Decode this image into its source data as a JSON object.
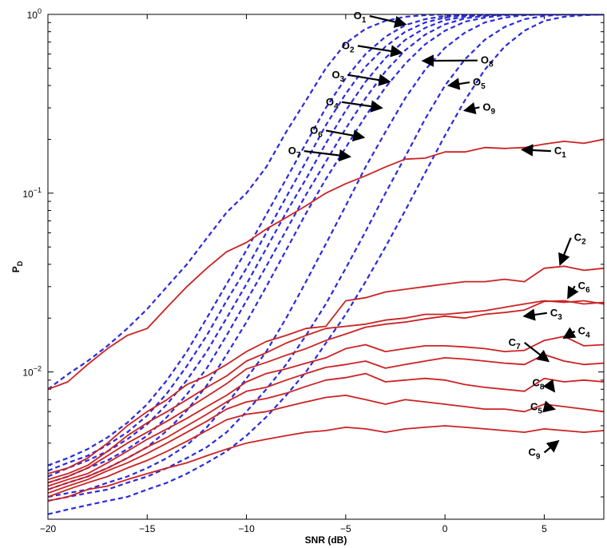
{
  "chart_data": {
    "type": "line",
    "xlabel": "SNR (dB)",
    "ylabel_main": "P",
    "ylabel_sub": "D",
    "y_scale": "log",
    "xlim": [
      -20,
      8
    ],
    "ylim": [
      0.0015,
      1
    ],
    "x_ticks": [
      {
        "value": -20,
        "label": "−20"
      },
      {
        "value": -15,
        "label": "−15"
      },
      {
        "value": -10,
        "label": "−10"
      },
      {
        "value": -5,
        "label": "−5"
      },
      {
        "value": 0,
        "label": "0"
      },
      {
        "value": 5,
        "label": "5"
      }
    ],
    "y_ticks": [
      {
        "value": 0.01,
        "base": "10",
        "exp": "−2"
      },
      {
        "value": 0.1,
        "base": "10",
        "exp": "−1"
      },
      {
        "value": 1,
        "base": "10",
        "exp": "0"
      }
    ],
    "x": [
      -20,
      -19,
      -18,
      -17,
      -16,
      -15,
      -14,
      -13,
      -12,
      -11,
      -10,
      -9,
      -8,
      -7,
      -6,
      -5,
      -4,
      -3,
      -2,
      -1,
      0,
      1,
      2,
      3,
      4,
      5,
      6,
      7,
      8
    ],
    "series_styles": {
      "O": {
        "color": "#2a2ae0",
        "dash": true
      },
      "C": {
        "color": "#cc2222",
        "dash": false
      }
    },
    "series": [
      {
        "id": "O1",
        "group": "O",
        "values": [
          0.008,
          0.0097,
          0.0115,
          0.014,
          0.0175,
          0.0225,
          0.03,
          0.04,
          0.056,
          0.078,
          0.1,
          0.14,
          0.22,
          0.33,
          0.5,
          0.69,
          0.83,
          0.92,
          0.97,
          0.99,
          1.0,
          1.0,
          1.0,
          1.0,
          1.0,
          1.0,
          1.0,
          1.0,
          1.0
        ]
      },
      {
        "id": "O2",
        "group": "O",
        "values": [
          0.003,
          0.0033,
          0.0037,
          0.0043,
          0.0052,
          0.0066,
          0.009,
          0.013,
          0.02,
          0.031,
          0.048,
          0.076,
          0.12,
          0.19,
          0.3,
          0.44,
          0.6,
          0.75,
          0.87,
          0.94,
          0.98,
          0.99,
          1.0,
          1.0,
          1.0,
          1.0,
          1.0,
          1.0,
          1.0
        ]
      },
      {
        "id": "O3",
        "group": "O",
        "values": [
          0.0028,
          0.0031,
          0.0034,
          0.0039,
          0.0046,
          0.0057,
          0.0076,
          0.0108,
          0.016,
          0.025,
          0.038,
          0.06,
          0.095,
          0.15,
          0.24,
          0.36,
          0.51,
          0.66,
          0.8,
          0.9,
          0.96,
          0.99,
          1.0,
          1.0,
          1.0,
          1.0,
          1.0,
          1.0,
          1.0
        ]
      },
      {
        "id": "O4",
        "group": "O",
        "values": [
          0.0026,
          0.0029,
          0.0032,
          0.0036,
          0.0042,
          0.0051,
          0.0066,
          0.009,
          0.013,
          0.02,
          0.031,
          0.049,
          0.078,
          0.12,
          0.19,
          0.29,
          0.42,
          0.57,
          0.72,
          0.84,
          0.93,
          0.97,
          0.99,
          1.0,
          1.0,
          1.0,
          1.0,
          1.0,
          1.0
        ]
      },
      {
        "id": "O6",
        "group": "O",
        "values": [
          0.0024,
          0.0026,
          0.0029,
          0.0032,
          0.0037,
          0.0044,
          0.0056,
          0.0075,
          0.0105,
          0.016,
          0.025,
          0.039,
          0.062,
          0.098,
          0.15,
          0.23,
          0.34,
          0.48,
          0.63,
          0.77,
          0.88,
          0.95,
          0.98,
          1.0,
          1.0,
          1.0,
          1.0,
          1.0,
          1.0
        ]
      },
      {
        "id": "O7",
        "group": "O",
        "values": [
          0.0022,
          0.0024,
          0.0026,
          0.0029,
          0.0033,
          0.0038,
          0.0047,
          0.0061,
          0.0084,
          0.0125,
          0.019,
          0.03,
          0.048,
          0.077,
          0.12,
          0.18,
          0.27,
          0.39,
          0.53,
          0.68,
          0.81,
          0.91,
          0.96,
          0.99,
          1.0,
          1.0,
          1.0,
          1.0,
          1.0
        ]
      },
      {
        "id": "O8",
        "group": "O",
        "values": [
          0.002,
          0.0021,
          0.0022,
          0.0024,
          0.0026,
          0.0029,
          0.0033,
          0.0039,
          0.0049,
          0.0066,
          0.0092,
          0.013,
          0.02,
          0.032,
          0.052,
          0.085,
          0.14,
          0.22,
          0.34,
          0.49,
          0.65,
          0.79,
          0.9,
          0.96,
          0.99,
          1.0,
          1.0,
          1.0,
          1.0
        ]
      },
      {
        "id": "O5",
        "group": "O",
        "values": [
          0.0019,
          0.002,
          0.0021,
          0.0022,
          0.0024,
          0.0026,
          0.0029,
          0.0033,
          0.0038,
          0.0046,
          0.006,
          0.008,
          0.011,
          0.016,
          0.024,
          0.038,
          0.061,
          0.1,
          0.16,
          0.26,
          0.4,
          0.56,
          0.72,
          0.85,
          0.94,
          0.98,
          1.0,
          1.0,
          1.0
        ]
      },
      {
        "id": "O9",
        "group": "O",
        "values": [
          0.0016,
          0.0017,
          0.0018,
          0.0019,
          0.002,
          0.0022,
          0.0024,
          0.0027,
          0.0031,
          0.0036,
          0.0044,
          0.0056,
          0.0074,
          0.01,
          0.0145,
          0.021,
          0.032,
          0.05,
          0.08,
          0.13,
          0.21,
          0.33,
          0.49,
          0.66,
          0.81,
          0.92,
          0.97,
          0.99,
          1.0
        ]
      },
      {
        "id": "C1",
        "group": "C",
        "values": [
          0.008,
          0.0088,
          0.011,
          0.0135,
          0.016,
          0.0175,
          0.023,
          0.03,
          0.038,
          0.047,
          0.053,
          0.063,
          0.073,
          0.085,
          0.1,
          0.113,
          0.125,
          0.14,
          0.155,
          0.157,
          0.17,
          0.17,
          0.18,
          0.178,
          0.18,
          0.188,
          0.195,
          0.19,
          0.2
        ]
      },
      {
        "id": "C2",
        "group": "C",
        "values": [
          0.0027,
          0.0029,
          0.0033,
          0.004,
          0.005,
          0.006,
          0.007,
          0.0085,
          0.0095,
          0.011,
          0.013,
          0.0148,
          0.016,
          0.0175,
          0.018,
          0.025,
          0.026,
          0.028,
          0.029,
          0.03,
          0.031,
          0.032,
          0.032,
          0.033,
          0.032,
          0.038,
          0.039,
          0.037,
          0.038
        ]
      },
      {
        "id": "C6",
        "group": "C",
        "values": [
          0.0025,
          0.0027,
          0.003,
          0.0036,
          0.0044,
          0.0052,
          0.006,
          0.007,
          0.0082,
          0.0095,
          0.0115,
          0.0128,
          0.0145,
          0.016,
          0.0175,
          0.018,
          0.0185,
          0.0195,
          0.02,
          0.021,
          0.021,
          0.0215,
          0.022,
          0.023,
          0.024,
          0.025,
          0.0245,
          0.025,
          0.024
        ]
      },
      {
        "id": "C3",
        "group": "C",
        "values": [
          0.0024,
          0.0026,
          0.0029,
          0.0034,
          0.004,
          0.0046,
          0.0053,
          0.0062,
          0.0073,
          0.0086,
          0.0104,
          0.0113,
          0.0124,
          0.0135,
          0.015,
          0.0163,
          0.0178,
          0.0185,
          0.019,
          0.0198,
          0.0205,
          0.02,
          0.021,
          0.0215,
          0.0222,
          0.0248,
          0.025,
          0.024,
          0.0245
        ]
      },
      {
        "id": "C4",
        "group": "C",
        "values": [
          0.0023,
          0.0025,
          0.0027,
          0.0031,
          0.0036,
          0.0042,
          0.0048,
          0.0055,
          0.0064,
          0.0074,
          0.0088,
          0.0098,
          0.0104,
          0.0112,
          0.012,
          0.0135,
          0.0142,
          0.013,
          0.0135,
          0.014,
          0.014,
          0.0138,
          0.0135,
          0.013,
          0.0132,
          0.015,
          0.0158,
          0.014,
          0.0142
        ]
      },
      {
        "id": "C7",
        "group": "C",
        "values": [
          0.0022,
          0.0024,
          0.0026,
          0.0029,
          0.0033,
          0.0038,
          0.0043,
          0.005,
          0.0058,
          0.0068,
          0.0078,
          0.0082,
          0.009,
          0.0098,
          0.0106,
          0.011,
          0.0115,
          0.0105,
          0.011,
          0.0115,
          0.012,
          0.0118,
          0.0115,
          0.0112,
          0.011,
          0.0125,
          0.0115,
          0.011,
          0.0112
        ]
      },
      {
        "id": "C8",
        "group": "C",
        "values": [
          0.0021,
          0.0023,
          0.0025,
          0.0028,
          0.0031,
          0.0035,
          0.004,
          0.0046,
          0.0053,
          0.0062,
          0.0068,
          0.0071,
          0.0076,
          0.0083,
          0.009,
          0.0093,
          0.0098,
          0.0088,
          0.009,
          0.0092,
          0.009,
          0.0085,
          0.0082,
          0.008,
          0.0078,
          0.0092,
          0.0088,
          0.009,
          0.0088
        ]
      },
      {
        "id": "C5",
        "group": "C",
        "values": [
          0.002,
          0.0022,
          0.0024,
          0.0026,
          0.0029,
          0.0032,
          0.0036,
          0.0041,
          0.0047,
          0.0054,
          0.0058,
          0.006,
          0.0064,
          0.0068,
          0.0072,
          0.0074,
          0.007,
          0.0066,
          0.007,
          0.0068,
          0.0066,
          0.0064,
          0.0062,
          0.0062,
          0.006,
          0.0066,
          0.0064,
          0.0062,
          0.006
        ]
      },
      {
        "id": "C9",
        "group": "C",
        "values": [
          0.0019,
          0.002,
          0.0022,
          0.0023,
          0.0025,
          0.0027,
          0.0029,
          0.0031,
          0.0034,
          0.0037,
          0.004,
          0.0042,
          0.0044,
          0.0046,
          0.0047,
          0.0049,
          0.0048,
          0.0046,
          0.0048,
          0.0049,
          0.005,
          0.0049,
          0.0048,
          0.0047,
          0.0046,
          0.0048,
          0.0047,
          0.0046,
          0.0047
        ]
      }
    ],
    "annotations": [
      {
        "main": "O",
        "sub": "1",
        "label_x": -4.6,
        "label_y": 0.94,
        "arrow_to_x": -2.0,
        "arrow_to_y": 0.88
      },
      {
        "main": "O",
        "sub": "2",
        "label_x": -5.2,
        "label_y": 0.64,
        "arrow_to_x": -2.2,
        "arrow_to_y": 0.61
      },
      {
        "main": "O",
        "sub": "3",
        "label_x": -5.7,
        "label_y": 0.44,
        "arrow_to_x": -2.8,
        "arrow_to_y": 0.42
      },
      {
        "main": "O",
        "sub": "4",
        "label_x": -6.0,
        "label_y": 0.31,
        "arrow_to_x": -3.2,
        "arrow_to_y": 0.3
      },
      {
        "main": "O",
        "sub": "6",
        "label_x": -6.8,
        "label_y": 0.215,
        "arrow_to_x": -4.1,
        "arrow_to_y": 0.205
      },
      {
        "main": "O",
        "sub": "7",
        "label_x": -7.9,
        "label_y": 0.165,
        "arrow_to_x": -4.8,
        "arrow_to_y": 0.16
      },
      {
        "main": "O",
        "sub": "8",
        "label_x": 1.8,
        "label_y": 0.53,
        "arrow_to_x": -1.1,
        "arrow_to_y": 0.55
      },
      {
        "main": "O",
        "sub": "5",
        "label_x": 1.4,
        "label_y": 0.4,
        "arrow_to_x": 0.2,
        "arrow_to_y": 0.4
      },
      {
        "main": "O",
        "sub": "9",
        "label_x": 1.9,
        "label_y": 0.29,
        "arrow_to_x": 1.0,
        "arrow_to_y": 0.29
      },
      {
        "main": "C",
        "sub": "1",
        "label_x": 5.5,
        "label_y": 0.165,
        "arrow_to_x": 3.9,
        "arrow_to_y": 0.175
      },
      {
        "main": "C",
        "sub": "2",
        "label_x": 6.5,
        "label_y": 0.054,
        "arrow_to_x": 5.8,
        "arrow_to_y": 0.04
      },
      {
        "main": "C",
        "sub": "6",
        "label_x": 6.7,
        "label_y": 0.029,
        "arrow_to_x": 6.2,
        "arrow_to_y": 0.026
      },
      {
        "main": "C",
        "sub": "3",
        "label_x": 5.3,
        "label_y": 0.0205,
        "arrow_to_x": 4.0,
        "arrow_to_y": 0.0205
      },
      {
        "main": "C",
        "sub": "4",
        "label_x": 6.7,
        "label_y": 0.0162,
        "arrow_to_x": 6.0,
        "arrow_to_y": 0.0155
      },
      {
        "main": "C",
        "sub": "7",
        "label_x": 3.2,
        "label_y": 0.014,
        "arrow_to_x": 5.2,
        "arrow_to_y": 0.0115
      },
      {
        "main": "C",
        "sub": "8",
        "label_x": 4.4,
        "label_y": 0.0083,
        "arrow_to_x": 5.5,
        "arrow_to_y": 0.0078
      },
      {
        "main": "C",
        "sub": "5",
        "label_x": 4.3,
        "label_y": 0.0061,
        "arrow_to_x": 5.5,
        "arrow_to_y": 0.0062
      },
      {
        "main": "C",
        "sub": "9",
        "label_x": 4.2,
        "label_y": 0.0034,
        "arrow_to_x": 5.7,
        "arrow_to_y": 0.0041
      }
    ]
  }
}
